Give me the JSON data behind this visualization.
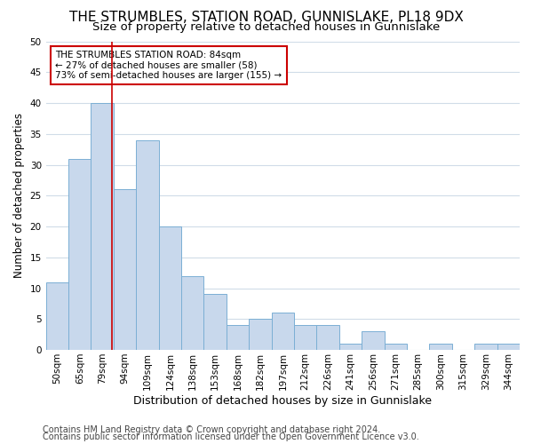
{
  "title": "THE STRUMBLES, STATION ROAD, GUNNISLAKE, PL18 9DX",
  "subtitle": "Size of property relative to detached houses in Gunnislake",
  "xlabel": "Distribution of detached houses by size in Gunnislake",
  "ylabel": "Number of detached properties",
  "categories": [
    "50sqm",
    "65sqm",
    "79sqm",
    "94sqm",
    "109sqm",
    "124sqm",
    "138sqm",
    "153sqm",
    "168sqm",
    "182sqm",
    "197sqm",
    "212sqm",
    "226sqm",
    "241sqm",
    "256sqm",
    "271sqm",
    "285sqm",
    "300sqm",
    "315sqm",
    "329sqm",
    "344sqm"
  ],
  "values": [
    11,
    31,
    40,
    26,
    34,
    20,
    12,
    9,
    4,
    5,
    6,
    4,
    4,
    1,
    3,
    1,
    0,
    1,
    0,
    1,
    1
  ],
  "bar_color": "#c8d8ec",
  "bar_edge_color": "#7bafd4",
  "vline_color": "#cc0000",
  "vline_pos": 2.425,
  "annotation_title": "THE STRUMBLES STATION ROAD: 84sqm",
  "annotation_line2": "← 27% of detached houses are smaller (58)",
  "annotation_line3": "73% of semi-detached houses are larger (155) →",
  "annotation_box_facecolor": "#ffffff",
  "annotation_border_color": "#cc0000",
  "ylim": [
    0,
    50
  ],
  "yticks": [
    0,
    5,
    10,
    15,
    20,
    25,
    30,
    35,
    40,
    45,
    50
  ],
  "background_color": "#ffffff",
  "grid_color": "#d0dce8",
  "title_fontsize": 11,
  "subtitle_fontsize": 9.5,
  "ylabel_fontsize": 8.5,
  "xlabel_fontsize": 9,
  "tick_fontsize": 7.5,
  "annot_fontsize": 7.5,
  "footer_fontsize": 7,
  "footer1": "Contains HM Land Registry data © Crown copyright and database right 2024.",
  "footer2": "Contains public sector information licensed under the Open Government Licence v3.0."
}
